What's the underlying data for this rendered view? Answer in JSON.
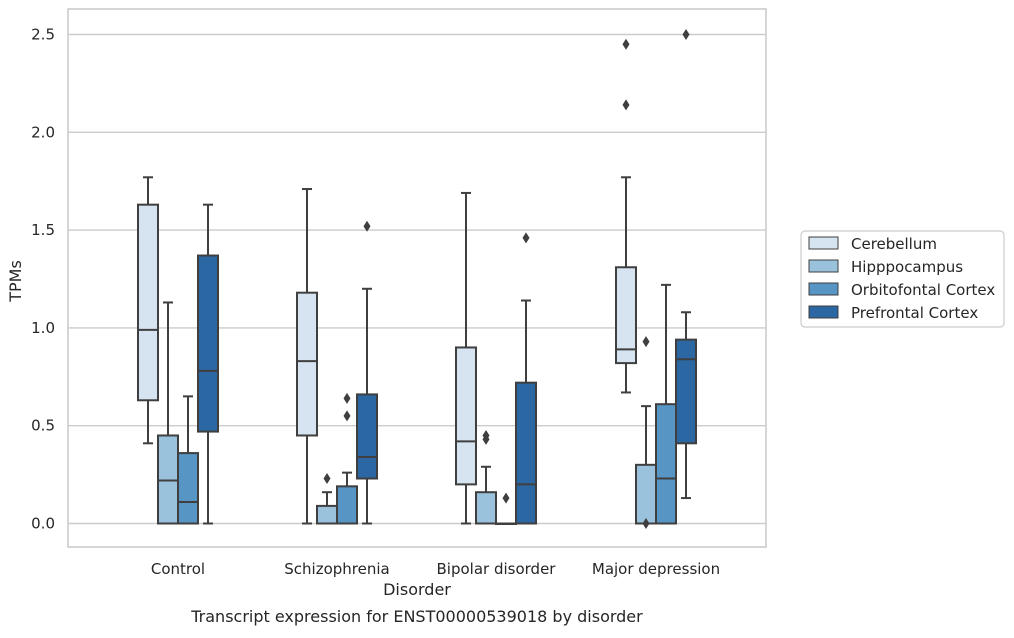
{
  "chart_data": {
    "type": "box",
    "caption": "Transcript expression for ENST00000539018 by disorder",
    "xlabel": "Disorder",
    "ylabel": "TPMs",
    "ylim": [
      -0.12,
      2.63
    ],
    "yticks": [
      0.0,
      0.5,
      1.0,
      1.5,
      2.0,
      2.5
    ],
    "ytick_labels": [
      "0.0",
      "0.5",
      "1.0",
      "1.5",
      "2.0",
      "2.5"
    ],
    "grid": "horizontal",
    "legend_position": "right",
    "categories": [
      "Control",
      "Schizophrenia",
      "Bipolar disorder",
      "Major depression"
    ],
    "series": [
      {
        "name": "Cerebellum",
        "color": "#d6e4f1",
        "boxes": [
          {
            "whisker_low": 0.41,
            "q1": 0.63,
            "median": 0.99,
            "q3": 1.63,
            "whisker_high": 1.77,
            "outliers": []
          },
          {
            "whisker_low": 0.0,
            "q1": 0.45,
            "median": 0.83,
            "q3": 1.18,
            "whisker_high": 1.71,
            "outliers": []
          },
          {
            "whisker_low": 0.0,
            "q1": 0.2,
            "median": 0.42,
            "q3": 0.9,
            "whisker_high": 1.69,
            "outliers": []
          },
          {
            "whisker_low": 0.67,
            "q1": 0.82,
            "median": 0.89,
            "q3": 1.31,
            "whisker_high": 1.77,
            "outliers": [
              2.14,
              2.45
            ]
          }
        ]
      },
      {
        "name": "Hipppocampus",
        "color": "#9ac2dc",
        "boxes": [
          {
            "whisker_low": 0.0,
            "q1": 0.0,
            "median": 0.22,
            "q3": 0.45,
            "whisker_high": 1.13,
            "outliers": []
          },
          {
            "whisker_low": 0.0,
            "q1": 0.0,
            "median": 0.0,
            "q3": 0.09,
            "whisker_high": 0.16,
            "outliers": [
              0.23
            ]
          },
          {
            "whisker_low": 0.0,
            "q1": 0.0,
            "median": 0.0,
            "q3": 0.16,
            "whisker_high": 0.29,
            "outliers": [
              0.43,
              0.45
            ]
          },
          {
            "whisker_low": 0.0,
            "q1": 0.0,
            "median": 0.0,
            "q3": 0.3,
            "whisker_high": 0.6,
            "outliers": [
              0.0,
              0.93
            ]
          }
        ]
      },
      {
        "name": "Orbitofontal Cortex",
        "color": "#5796c4",
        "boxes": [
          {
            "whisker_low": 0.0,
            "q1": 0.0,
            "median": 0.11,
            "q3": 0.36,
            "whisker_high": 0.65,
            "outliers": []
          },
          {
            "whisker_low": 0.0,
            "q1": 0.0,
            "median": 0.0,
            "q3": 0.19,
            "whisker_high": 0.26,
            "outliers": [
              0.55,
              0.64
            ]
          },
          {
            "whisker_low": 0.0,
            "q1": 0.0,
            "median": 0.0,
            "q3": 0.0,
            "whisker_high": 0.0,
            "outliers": [
              0.13
            ]
          },
          {
            "whisker_low": 0.0,
            "q1": 0.0,
            "median": 0.23,
            "q3": 0.61,
            "whisker_high": 1.22,
            "outliers": []
          }
        ]
      },
      {
        "name": "Prefrontal Cortex",
        "color": "#2b67a2",
        "boxes": [
          {
            "whisker_low": 0.0,
            "q1": 0.47,
            "median": 0.78,
            "q3": 1.37,
            "whisker_high": 1.63,
            "outliers": []
          },
          {
            "whisker_low": 0.0,
            "q1": 0.23,
            "median": 0.34,
            "q3": 0.66,
            "whisker_high": 1.2,
            "outliers": [
              1.52
            ]
          },
          {
            "whisker_low": 0.0,
            "q1": 0.0,
            "median": 0.2,
            "q3": 0.72,
            "whisker_high": 1.14,
            "outliers": [
              1.46
            ]
          },
          {
            "whisker_low": 0.13,
            "q1": 0.41,
            "median": 0.84,
            "q3": 0.94,
            "whisker_high": 1.08,
            "outliers": [
              2.5
            ]
          }
        ]
      }
    ]
  }
}
